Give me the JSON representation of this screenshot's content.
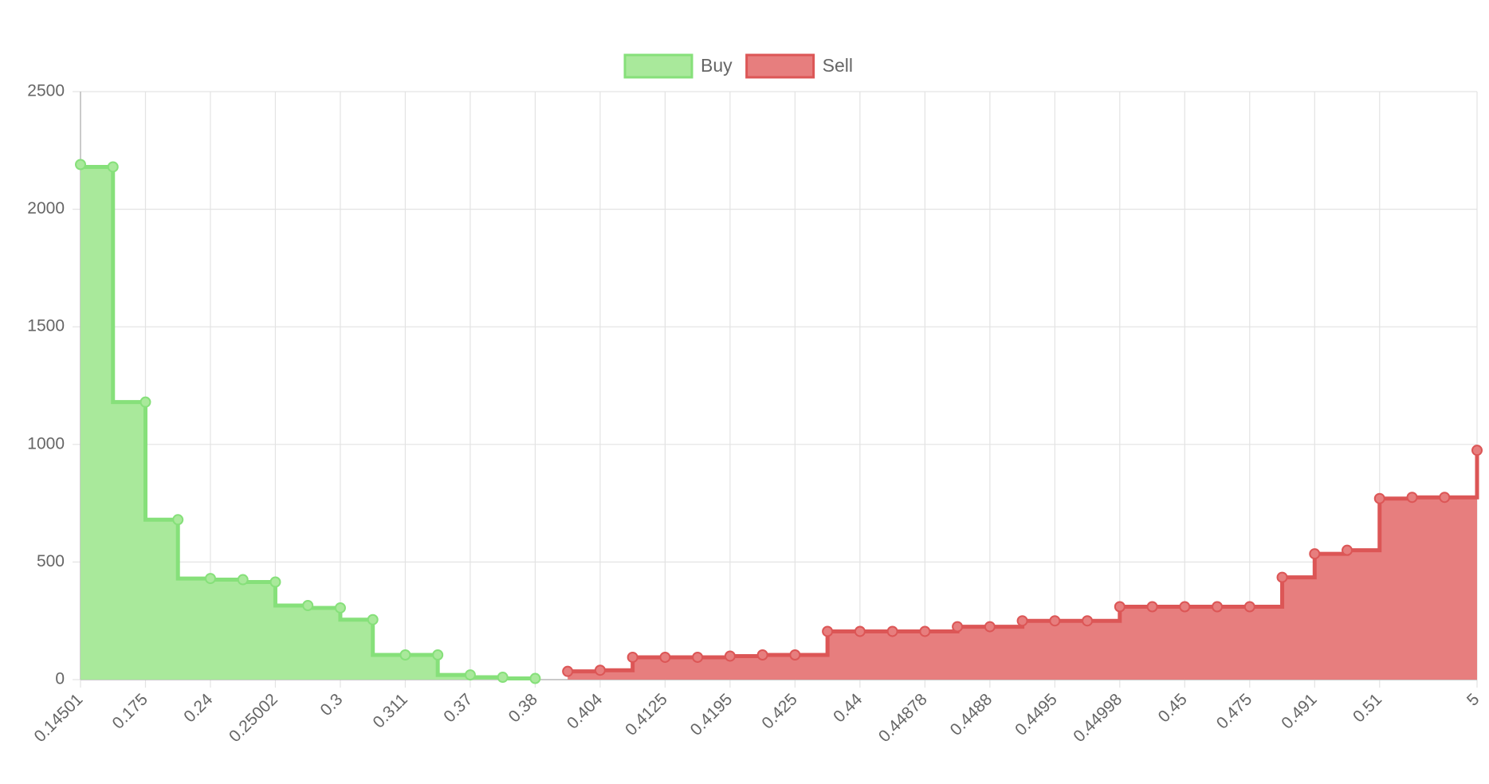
{
  "chart_data": {
    "type": "line",
    "categories": [
      "0.14501",
      null,
      "0.175",
      null,
      "0.24",
      null,
      "0.25002",
      null,
      "0.3",
      null,
      "0.311",
      null,
      "0.37",
      null,
      "0.38",
      null,
      "0.404",
      null,
      "0.4125",
      null,
      "0.4195",
      null,
      "0.425",
      null,
      "0.44",
      null,
      "0.44878",
      null,
      "0.4488",
      null,
      "0.4495",
      null,
      "0.44998",
      null,
      "0.45",
      null,
      "0.475",
      null,
      "0.491",
      null,
      "0.51",
      null,
      null,
      "5"
    ],
    "series": [
      {
        "name": "Buy",
        "color": "#86e07a",
        "fill": "#a9e99b",
        "stepped": "before",
        "values": [
          2190,
          2180,
          1180,
          680,
          430,
          425,
          415,
          315,
          305,
          255,
          105,
          105,
          20,
          10,
          5,
          null,
          null,
          null,
          null,
          null,
          null,
          null,
          null,
          null,
          null,
          null,
          null,
          null,
          null,
          null,
          null,
          null,
          null,
          null,
          null,
          null,
          null,
          null,
          null,
          null,
          null,
          null,
          null,
          null
        ]
      },
      {
        "name": "Sell",
        "color": "#dc5656",
        "fill": "#e77e7e",
        "stepped": "after",
        "values": [
          null,
          null,
          null,
          null,
          null,
          null,
          null,
          null,
          null,
          null,
          null,
          null,
          null,
          null,
          null,
          35,
          40,
          95,
          95,
          95,
          100,
          105,
          105,
          205,
          205,
          205,
          205,
          225,
          225,
          250,
          250,
          250,
          310,
          310,
          310,
          310,
          310,
          435,
          535,
          550,
          770,
          775,
          775,
          975
        ]
      }
    ],
    "ylim": [
      0,
      2500
    ],
    "yticks": [
      0,
      500,
      1000,
      1500,
      2000,
      2500
    ],
    "grid": true,
    "legend": "top"
  }
}
